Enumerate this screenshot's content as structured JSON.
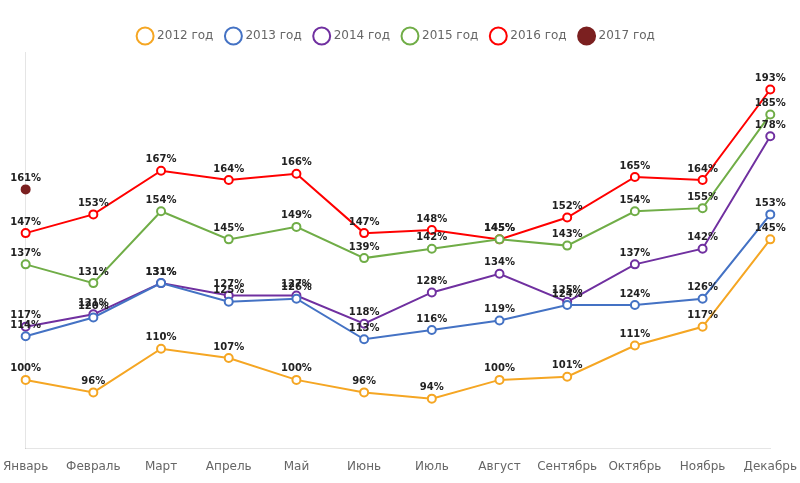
{
  "chart_data": {
    "type": "line",
    "categories": [
      "Январь",
      "Февраль",
      "Март",
      "Апрель",
      "Май",
      "Июнь",
      "Июль",
      "Август",
      "Сентябрь",
      "Октябрь",
      "Ноябрь",
      "Декабрь"
    ],
    "series": [
      {
        "name": "2012 год",
        "color": "#F5A623",
        "marker": "open_circle",
        "values": [
          100,
          96,
          110,
          107,
          100,
          96,
          94,
          100,
          101,
          111,
          117,
          145
        ],
        "value_labels": [
          "100%",
          "96%",
          "110%",
          "107%",
          "100%",
          "96%",
          "94%",
          "100%",
          "101%",
          "111%",
          "117%",
          "145%"
        ]
      },
      {
        "name": "2013 год",
        "color": "#4472C4",
        "marker": "open_circle",
        "values": [
          114,
          120,
          131,
          125,
          126,
          113,
          116,
          119,
          124,
          124,
          126,
          153
        ],
        "value_labels": [
          "114%",
          "120%",
          "131%",
          "125%",
          "126%",
          "113%",
          "116%",
          "119%",
          "124%",
          "124%",
          "126%",
          "153%"
        ]
      },
      {
        "name": "2014 год",
        "color": "#7030A0",
        "marker": "open_circle",
        "values": [
          117,
          121,
          131,
          127,
          127,
          118,
          128,
          134,
          125,
          137,
          142,
          178
        ],
        "value_labels": [
          "117%",
          "121%",
          "131%",
          "127%",
          "127%",
          "118%",
          "128%",
          "134%",
          "125%",
          "137%",
          "142%",
          "178%"
        ]
      },
      {
        "name": "2015 год",
        "color": "#70AD47",
        "marker": "open_circle",
        "values": [
          137,
          131,
          154,
          145,
          149,
          139,
          142,
          145,
          143,
          154,
          155,
          185
        ],
        "value_labels": [
          "137%",
          "131%",
          "154%",
          "145%",
          "149%",
          "139%",
          "142%",
          "145%",
          "143%",
          "154%",
          "155%",
          "185%"
        ]
      },
      {
        "name": "2016 год",
        "color": "#FF0000",
        "marker": "open_circle",
        "values": [
          147,
          153,
          167,
          164,
          166,
          147,
          148,
          145,
          152,
          165,
          164,
          193
        ],
        "value_labels": [
          "147%",
          "153%",
          "167%",
          "164%",
          "166%",
          "147%",
          "148%",
          "145%",
          "152%",
          "165%",
          "164%",
          "193%"
        ]
      },
      {
        "name": "2017 год",
        "color": "#7B2020",
        "marker": "circle",
        "values": [
          161,
          null,
          null,
          null,
          null,
          null,
          null,
          null,
          null,
          null,
          null,
          null
        ],
        "value_labels": [
          "161%",
          null,
          null,
          null,
          null,
          null,
          null,
          null,
          null,
          null,
          null,
          null
        ]
      }
    ],
    "ylim": [
      78,
      205
    ],
    "grid": false,
    "data_labels": true,
    "tick_labels": "x",
    "legend": "top"
  }
}
